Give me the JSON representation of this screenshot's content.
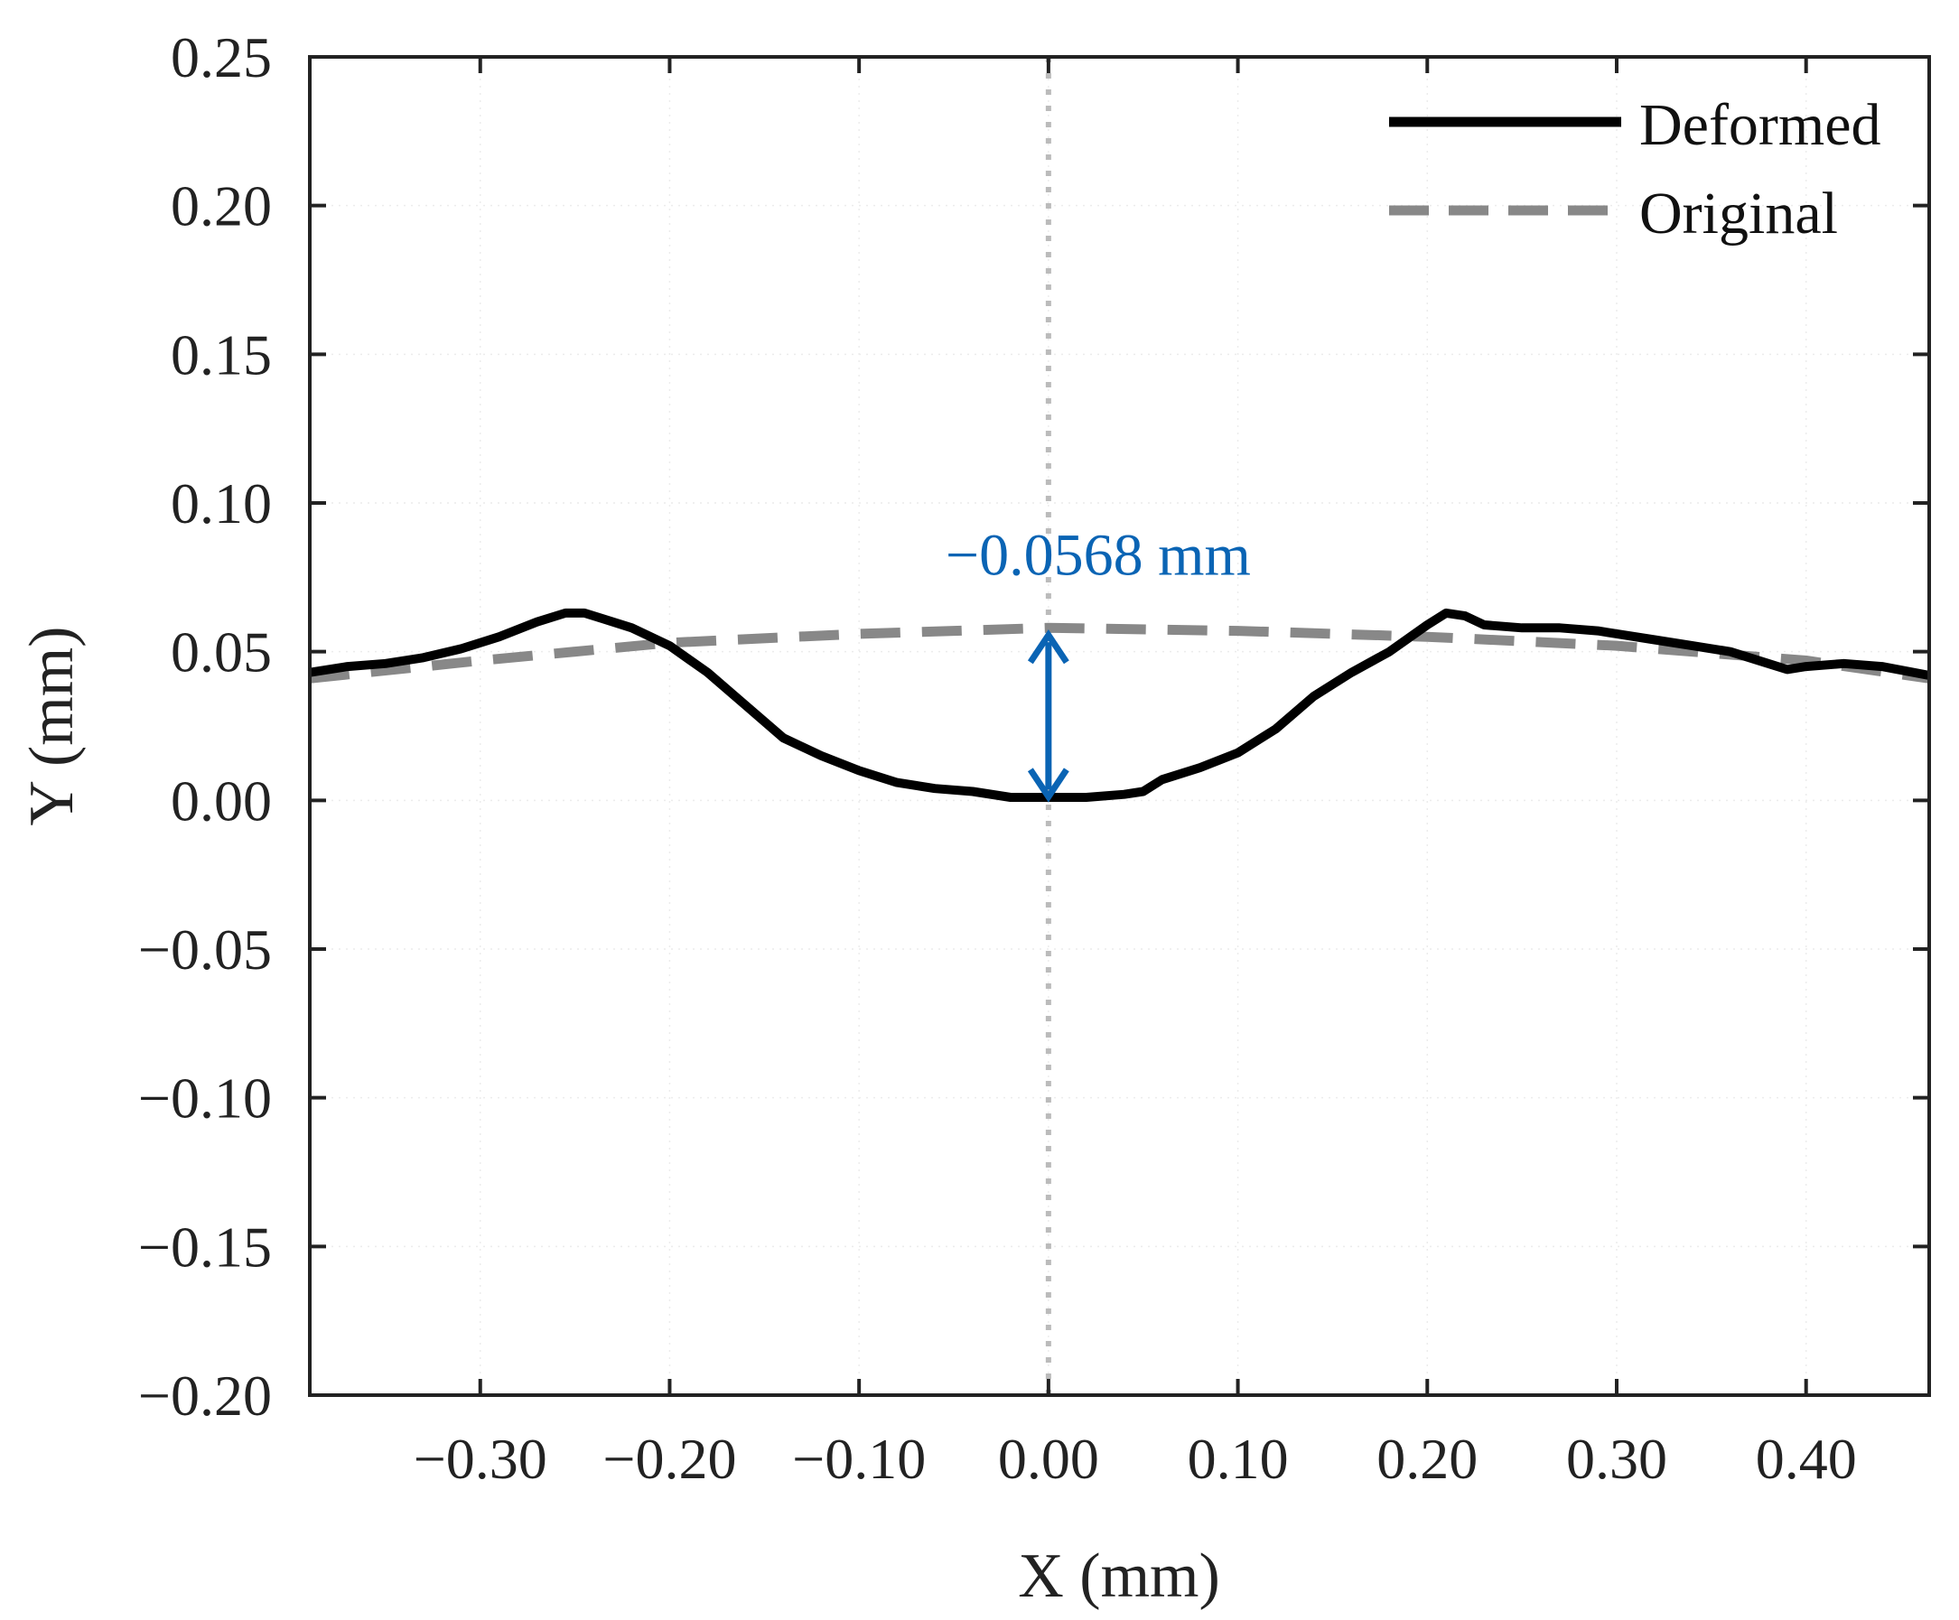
{
  "chart_data": {
    "type": "line",
    "title": "",
    "xlabel": "X (mm)",
    "ylabel": "Y (mm)",
    "xlim": [
      -0.39,
      0.465
    ],
    "ylim": [
      -0.2,
      0.25
    ],
    "x_ticks": [
      -0.3,
      -0.2,
      -0.1,
      0.0,
      0.1,
      0.2,
      0.3,
      0.4
    ],
    "x_tick_labels": [
      "−0.30",
      "−0.20",
      "−0.10",
      "0.00",
      "0.10",
      "0.20",
      "0.30",
      "0.40"
    ],
    "y_ticks": [
      0.25,
      0.2,
      0.15,
      0.1,
      0.05,
      0.0,
      -0.05,
      -0.1,
      -0.15,
      -0.2
    ],
    "y_tick_labels": [
      "0.25",
      "0.20",
      "0.15",
      "0.10",
      "0.05",
      "0.00",
      "−0.05",
      "−0.10",
      "−0.15",
      "−0.20"
    ],
    "grid": true,
    "legend_position": "top-right",
    "series": [
      {
        "name": "Deformed",
        "style": "solid",
        "color": "#000000",
        "x": [
          -0.39,
          -0.37,
          -0.35,
          -0.33,
          -0.31,
          -0.29,
          -0.27,
          -0.255,
          -0.245,
          -0.235,
          -0.22,
          -0.2,
          -0.18,
          -0.16,
          -0.14,
          -0.12,
          -0.1,
          -0.08,
          -0.06,
          -0.04,
          -0.02,
          0.0,
          0.02,
          0.04,
          0.05,
          0.06,
          0.08,
          0.1,
          0.12,
          0.14,
          0.16,
          0.18,
          0.2,
          0.21,
          0.22,
          0.23,
          0.25,
          0.27,
          0.29,
          0.3,
          0.32,
          0.34,
          0.36,
          0.38,
          0.39,
          0.4,
          0.42,
          0.44,
          0.465
        ],
        "y": [
          0.043,
          0.045,
          0.046,
          0.048,
          0.051,
          0.055,
          0.06,
          0.063,
          0.063,
          0.061,
          0.058,
          0.052,
          0.043,
          0.032,
          0.021,
          0.015,
          0.01,
          0.006,
          0.004,
          0.003,
          0.001,
          0.001,
          0.001,
          0.002,
          0.003,
          0.007,
          0.011,
          0.016,
          0.024,
          0.035,
          0.043,
          0.05,
          0.059,
          0.063,
          0.062,
          0.059,
          0.058,
          0.058,
          0.057,
          0.056,
          0.054,
          0.052,
          0.05,
          0.046,
          0.044,
          0.045,
          0.046,
          0.045,
          0.042
        ]
      },
      {
        "name": "Original",
        "style": "dashed",
        "color": "#888888",
        "x": [
          -0.39,
          -0.3,
          -0.2,
          -0.1,
          -0.05,
          0.0,
          0.1,
          0.2,
          0.3,
          0.4,
          0.465
        ],
        "y": [
          0.041,
          0.047,
          0.053,
          0.056,
          0.057,
          0.058,
          0.057,
          0.055,
          0.052,
          0.047,
          0.041
        ]
      }
    ],
    "annotations": [
      {
        "text": "−0.0568 mm",
        "color": "#0A64B4",
        "arrow": {
          "x": 0.0,
          "y_from": 0.0,
          "y_to": 0.0568,
          "double_headed": true
        }
      }
    ],
    "reference_line": {
      "axis": "x",
      "value": 0.0,
      "style": "dotted",
      "color": "#BBBBBB"
    }
  }
}
